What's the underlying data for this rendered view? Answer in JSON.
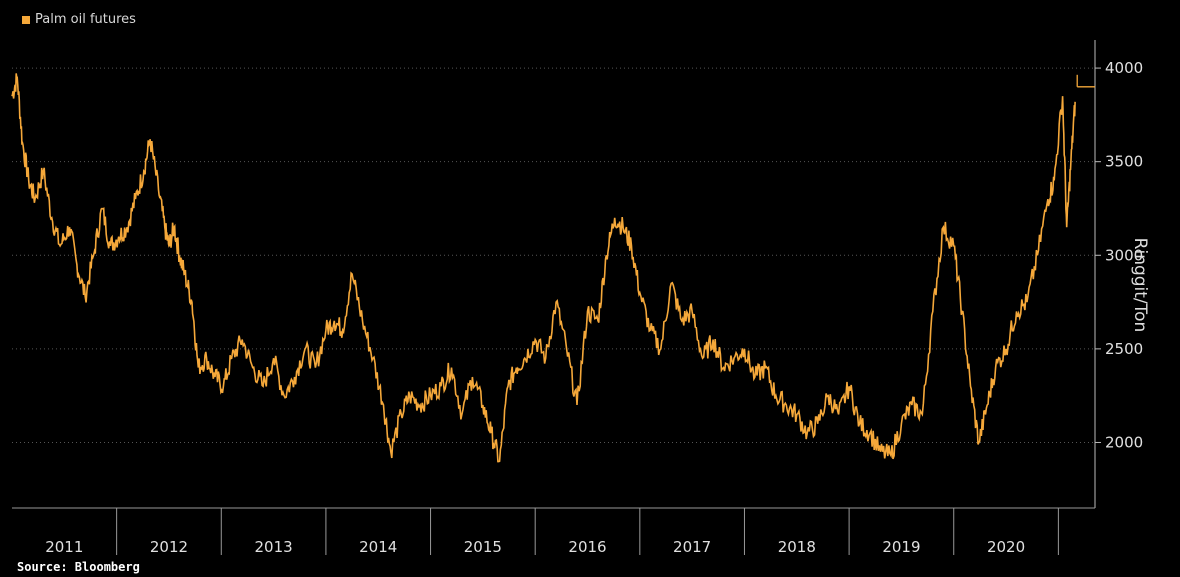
{
  "legend": {
    "label": "Palm oil futures",
    "color": "#f5a83a"
  },
  "source": "Source: Bloomberg",
  "chart_data": {
    "type": "line",
    "title": "",
    "xlabel": "",
    "ylabel": "Ringgit/Ton",
    "ylim": [
      1650,
      4150
    ],
    "yticks": [
      2000,
      2500,
      3000,
      3500,
      4000
    ],
    "grid": true,
    "legend_position": "top-left",
    "x_ticks": [
      "2011",
      "2012",
      "2013",
      "2014",
      "2015",
      "2016",
      "2017",
      "2018",
      "2019",
      "2020"
    ],
    "series": [
      {
        "name": "Palm oil futures",
        "color": "#f5a83a",
        "x": [
          2011.0,
          2011.05,
          2011.1,
          2011.16,
          2011.22,
          2011.3,
          2011.38,
          2011.46,
          2011.55,
          2011.62,
          2011.7,
          2011.78,
          2011.86,
          2011.94,
          2012.02,
          2012.1,
          2012.18,
          2012.26,
          2012.32,
          2012.4,
          2012.46,
          2012.5,
          2012.55,
          2012.6,
          2012.65,
          2012.72,
          2012.78,
          2012.86,
          2012.94,
          2013.02,
          2013.1,
          2013.2,
          2013.3,
          2013.4,
          2013.5,
          2013.6,
          2013.7,
          2013.8,
          2013.9,
          2014.0,
          2014.08,
          2014.16,
          2014.25,
          2014.35,
          2014.45,
          2014.55,
          2014.62,
          2014.72,
          2014.8,
          2014.9,
          2015.0,
          2015.1,
          2015.2,
          2015.3,
          2015.4,
          2015.5,
          2015.58,
          2015.66,
          2015.74,
          2015.82,
          2015.9,
          2016.0,
          2016.1,
          2016.2,
          2016.3,
          2016.4,
          2016.5,
          2016.6,
          2016.68,
          2016.76,
          2016.84,
          2016.92,
          2017.0,
          2017.1,
          2017.2,
          2017.3,
          2017.4,
          2017.5,
          2017.6,
          2017.7,
          2017.8,
          2017.9,
          2018.0,
          2018.1,
          2018.2,
          2018.3,
          2018.4,
          2018.5,
          2018.6,
          2018.7,
          2018.8,
          2018.9,
          2019.0,
          2019.1,
          2019.2,
          2019.3,
          2019.4,
          2019.5,
          2019.6,
          2019.7,
          2019.8,
          2019.9,
          2020.0,
          2020.08,
          2020.16,
          2020.24,
          2020.32,
          2020.4,
          2020.5,
          2020.6,
          2020.7,
          2020.8,
          2020.9,
          2020.96,
          2021.04,
          2021.08,
          2021.12,
          2021.16
        ],
        "y": [
          3850,
          3950,
          3600,
          3400,
          3300,
          3450,
          3200,
          3050,
          3150,
          2950,
          2780,
          3000,
          3250,
          3050,
          3100,
          3150,
          3300,
          3450,
          3620,
          3350,
          3150,
          3050,
          3150,
          3000,
          2900,
          2750,
          2400,
          2450,
          2350,
          2300,
          2450,
          2550,
          2400,
          2300,
          2450,
          2250,
          2350,
          2500,
          2400,
          2600,
          2650,
          2600,
          2900,
          2650,
          2450,
          2200,
          1950,
          2150,
          2250,
          2200,
          2250,
          2300,
          2400,
          2150,
          2350,
          2200,
          2050,
          1900,
          2300,
          2400,
          2450,
          2550,
          2450,
          2750,
          2500,
          2200,
          2700,
          2650,
          3000,
          3200,
          3150,
          3050,
          2800,
          2600,
          2500,
          2850,
          2650,
          2700,
          2450,
          2550,
          2400,
          2450,
          2500,
          2350,
          2400,
          2250,
          2200,
          2150,
          2050,
          2100,
          2250,
          2150,
          2300,
          2100,
          2050,
          1950,
          1930,
          2100,
          2200,
          2150,
          2700,
          3150,
          3050,
          2700,
          2300,
          2000,
          2200,
          2400,
          2500,
          2700,
          2750,
          3000,
          3300,
          3400,
          3850,
          3150,
          3500,
          3820
        ]
      }
    ]
  }
}
